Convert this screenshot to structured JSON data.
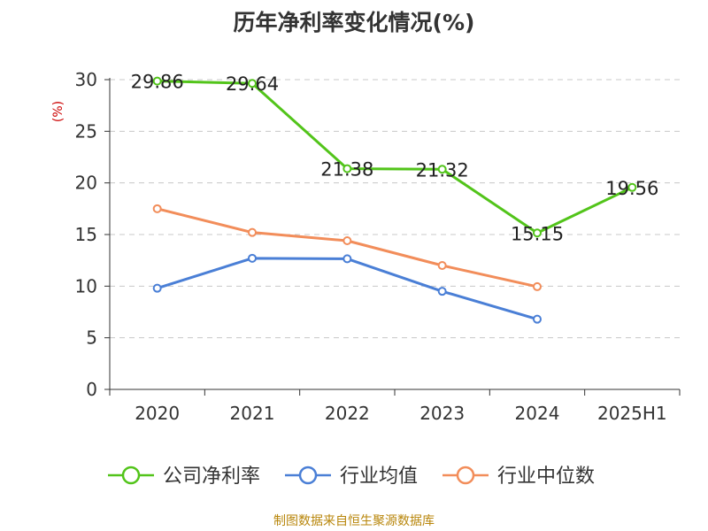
{
  "chart_data": {
    "type": "line",
    "title": "历年净利率变化情况(%)",
    "ylabel": "(%)",
    "categories": [
      "2020",
      "2021",
      "2022",
      "2023",
      "2024",
      "2025H1"
    ],
    "ylim": [
      0,
      30
    ],
    "yticks": [
      0,
      5,
      10,
      15,
      20,
      25,
      30
    ],
    "grid": true,
    "legend_position": "bottom",
    "series": [
      {
        "name": "公司净利率",
        "color": "#52c41a",
        "values": [
          29.86,
          29.64,
          21.38,
          21.32,
          15.15,
          19.56
        ],
        "show_labels": true
      },
      {
        "name": "行业均值",
        "color": "#4a7fd6",
        "values": [
          9.8,
          12.7,
          12.65,
          9.5,
          6.8,
          null
        ],
        "show_labels": false
      },
      {
        "name": "行业中位数",
        "color": "#f28d5a",
        "values": [
          17.5,
          15.2,
          14.4,
          12.0,
          9.95,
          null
        ],
        "show_labels": false
      }
    ]
  },
  "footer": {
    "source": "制图数据来自恒生聚源数据库"
  }
}
